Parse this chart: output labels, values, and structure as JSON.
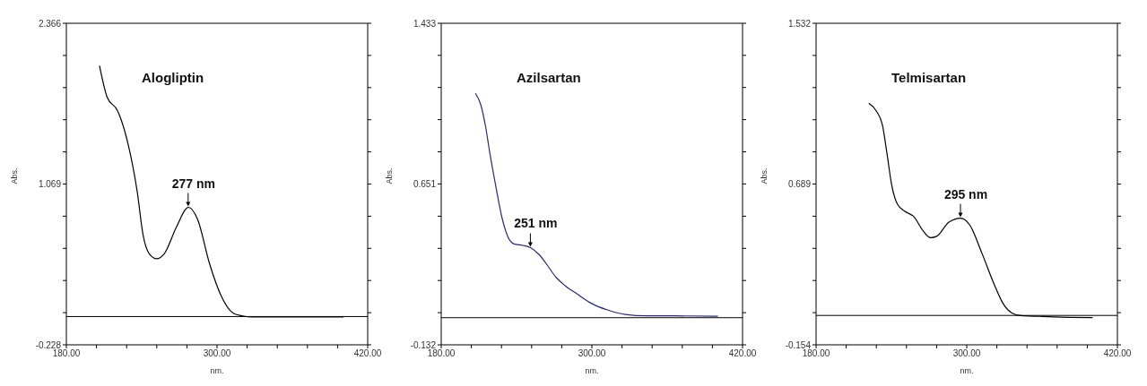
{
  "chart_data": [
    {
      "type": "line",
      "title": "Alogliptin",
      "xlabel": "nm.",
      "ylabel": "Abs.",
      "x": [
        206.4,
        212.4,
        220.8,
        223.2,
        229.2,
        236.4,
        241.2,
        246,
        252,
        258,
        267.6,
        277.2,
        284.4,
        294,
        303.6,
        313.2,
        320.4,
        327.6,
        400.8
      ],
      "series": [
        {
          "color": "#000000",
          "values": [
            2.023,
            1.772,
            1.66,
            1.6,
            1.39,
            1.01,
            0.652,
            0.507,
            0.467,
            0.507,
            0.72,
            0.881,
            0.787,
            0.428,
            0.16,
            0.025,
            0.005,
            -0.004,
            -0.004
          ]
        }
      ],
      "xlim": [
        180,
        420
      ],
      "ylim": [
        -0.228,
        2.366
      ],
      "xticks": [
        {
          "value": 180,
          "label": "180.00"
        },
        {
          "value": 204,
          "label": null
        },
        {
          "value": 228,
          "label": null
        },
        {
          "value": 252,
          "label": null
        },
        {
          "value": 276,
          "label": null
        },
        {
          "value": 300,
          "label": "300.00"
        },
        {
          "value": 324,
          "label": null
        },
        {
          "value": 348,
          "label": null
        },
        {
          "value": 372,
          "label": null
        },
        {
          "value": 396,
          "label": null
        },
        {
          "value": 420,
          "label": "420.00"
        }
      ],
      "yticks": [
        -0.228,
        {
          "value": 0.0314,
          "label": null
        },
        {
          "value": 0.2908,
          "label": null
        },
        {
          "value": 0.5502,
          "label": null
        },
        {
          "value": 0.8096,
          "label": null
        },
        1.069,
        {
          "value": 1.3284,
          "label": null
        },
        {
          "value": 1.5878,
          "label": null
        },
        {
          "value": 1.8472,
          "label": null
        },
        {
          "value": 2.1066,
          "label": null
        },
        2.366
      ],
      "annotations": [
        {
          "text": "277 nm",
          "x": 277,
          "y": 0.881
        }
      ],
      "ref_lines": [
        {
          "axis": "y",
          "value": 0,
          "label": null
        }
      ]
    },
    {
      "type": "line",
      "title": "Azilsartan",
      "xlabel": "nm.",
      "ylabel": "Abs.",
      "x": [
        207.3,
        211.6,
        215.2,
        218.8,
        223.6,
        228.4,
        233.2,
        238,
        245.1,
        251.1,
        258.3,
        264.3,
        271.5,
        278.7,
        288.3,
        300.2,
        312.2,
        326.6,
        343.4,
        360.1,
        400.4
      ],
      "series": [
        {
          "color": "#2b2b6b",
          "values": [
            1.092,
            1.034,
            0.935,
            0.798,
            0.636,
            0.487,
            0.392,
            0.359,
            0.352,
            0.341,
            0.305,
            0.257,
            0.196,
            0.156,
            0.115,
            0.068,
            0.038,
            0.016,
            0.009,
            0.009,
            0.007
          ]
        }
      ],
      "xlim": [
        180,
        420
      ],
      "ylim": [
        -0.132,
        1.433
      ],
      "xticks": [
        {
          "value": 180,
          "label": "180.00"
        },
        {
          "value": 204,
          "label": null
        },
        {
          "value": 228,
          "label": null
        },
        {
          "value": 252,
          "label": null
        },
        {
          "value": 276,
          "label": null
        },
        {
          "value": 300,
          "label": "300.00"
        },
        {
          "value": 324,
          "label": null
        },
        {
          "value": 348,
          "label": null
        },
        {
          "value": 372,
          "label": null
        },
        {
          "value": 396,
          "label": null
        },
        {
          "value": 420,
          "label": "420.00"
        }
      ],
      "yticks": [
        -0.132,
        {
          "value": 0.0245,
          "label": null
        },
        {
          "value": 0.181,
          "label": null
        },
        {
          "value": 0.3375,
          "label": null
        },
        {
          "value": 0.494,
          "label": null
        },
        0.651,
        {
          "value": 0.8075,
          "label": null
        },
        {
          "value": 0.964,
          "label": null
        },
        {
          "value": 1.1205,
          "label": null
        },
        {
          "value": 1.277,
          "label": null
        },
        1.433
      ],
      "annotations": [
        {
          "text": "251 nm",
          "x": 251,
          "y": 0.341
        }
      ],
      "ref_lines": [
        {
          "axis": "y",
          "value": 0,
          "label": null
        }
      ]
    },
    {
      "type": "line",
      "title": "Telmisartan",
      "xlabel": "nm.",
      "ylabel": "Abs.",
      "x": [
        222,
        228,
        232.8,
        236.4,
        240,
        244.8,
        250.8,
        258,
        265.2,
        271.2,
        276,
        285.6,
        295.2,
        302.4,
        312,
        321.6,
        328.8,
        336,
        343.2,
        357.6,
        369.6,
        400.3
      ],
      "series": [
        {
          "color": "#000000",
          "values": [
            1.113,
            1.072,
            0.999,
            0.853,
            0.692,
            0.583,
            0.546,
            0.517,
            0.444,
            0.408,
            0.415,
            0.488,
            0.51,
            0.474,
            0.328,
            0.167,
            0.064,
            0.013,
            -0.001,
            -0.005,
            -0.008,
            -0.011
          ]
        }
      ],
      "xlim": [
        180,
        420
      ],
      "ylim": [
        -0.154,
        1.532
      ],
      "xticks": [
        {
          "value": 180,
          "label": "180.00"
        },
        {
          "value": 204,
          "label": null
        },
        {
          "value": 228,
          "label": null
        },
        {
          "value": 252,
          "label": null
        },
        {
          "value": 276,
          "label": null
        },
        {
          "value": 300,
          "label": "300.00"
        },
        {
          "value": 324,
          "label": null
        },
        {
          "value": 348,
          "label": null
        },
        {
          "value": 372,
          "label": null
        },
        {
          "value": 396,
          "label": null
        },
        {
          "value": 420,
          "label": "420.00"
        }
      ],
      "yticks": [
        -0.154,
        {
          "value": 0.0146,
          "label": null
        },
        {
          "value": 0.1832,
          "label": null
        },
        {
          "value": 0.3518,
          "label": null
        },
        {
          "value": 0.5204,
          "label": null
        },
        0.689,
        {
          "value": 0.8576,
          "label": null
        },
        {
          "value": 1.0262,
          "label": null
        },
        {
          "value": 1.1948,
          "label": null
        },
        {
          "value": 1.3634,
          "label": null
        },
        1.532
      ],
      "annotations": [
        {
          "text": "295 nm",
          "x": 295,
          "y": 0.51
        }
      ],
      "ref_lines": [
        {
          "axis": "y",
          "value": 0,
          "label": null
        }
      ]
    }
  ]
}
